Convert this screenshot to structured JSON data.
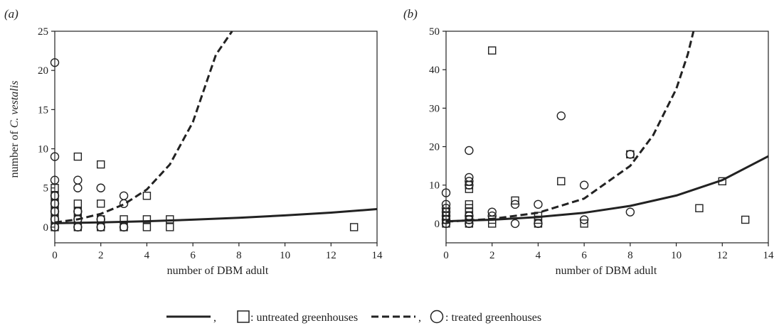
{
  "legend": {
    "untreated_label": ": untreated greenhouses",
    "treated_label": ": treated greenhouses",
    "separator": ","
  },
  "chart_data": [
    {
      "panel_label": "(a)",
      "type": "scatter",
      "xlabel": "number of DBM adult",
      "ylabel_prefix": "number of ",
      "ylabel_italic": "C. vestalis",
      "xlim": [
        0,
        14
      ],
      "ylim": [
        -2,
        25
      ],
      "xticks": [
        0,
        2,
        4,
        6,
        8,
        10,
        12,
        14
      ],
      "yticks": [
        0,
        5,
        10,
        15,
        20,
        25
      ],
      "grid": false,
      "series": [
        {
          "name": "untreated greenhouses",
          "marker": "square",
          "points": [
            [
              0,
              0
            ],
            [
              0,
              1
            ],
            [
              0,
              2
            ],
            [
              0,
              3
            ],
            [
              0,
              4
            ],
            [
              0,
              5
            ],
            [
              1,
              0
            ],
            [
              1,
              1
            ],
            [
              1,
              2
            ],
            [
              1,
              3
            ],
            [
              1,
              9
            ],
            [
              2,
              0
            ],
            [
              2,
              1
            ],
            [
              2,
              3
            ],
            [
              2,
              8
            ],
            [
              3,
              0
            ],
            [
              3,
              1
            ],
            [
              4,
              0
            ],
            [
              4,
              1
            ],
            [
              4,
              4
            ],
            [
              5,
              0
            ],
            [
              5,
              1
            ],
            [
              13,
              0
            ]
          ]
        },
        {
          "name": "treated greenhouses",
          "marker": "circle",
          "points": [
            [
              0,
              0
            ],
            [
              0,
              1
            ],
            [
              0,
              2
            ],
            [
              0,
              3
            ],
            [
              0,
              4
            ],
            [
              0,
              6
            ],
            [
              0,
              9
            ],
            [
              0,
              21
            ],
            [
              1,
              0
            ],
            [
              1,
              1
            ],
            [
              1,
              2
            ],
            [
              1,
              5
            ],
            [
              1,
              6
            ],
            [
              2,
              0
            ],
            [
              2,
              1
            ],
            [
              2,
              5
            ],
            [
              3,
              0
            ],
            [
              3,
              3
            ],
            [
              3,
              4
            ]
          ]
        }
      ],
      "fitted_curves": [
        {
          "series": "untreated greenhouses",
          "style": "solid",
          "x": [
            0,
            2,
            4,
            6,
            8,
            10,
            12,
            14
          ],
          "y": [
            0.5,
            0.6,
            0.75,
            0.95,
            1.2,
            1.5,
            1.85,
            2.3
          ]
        },
        {
          "series": "treated greenhouses",
          "style": "dashed",
          "x": [
            0,
            1,
            2,
            3,
            4,
            5,
            6,
            7,
            7.7
          ],
          "y": [
            0.6,
            1.0,
            1.7,
            2.9,
            4.8,
            8.0,
            13.4,
            22.0,
            25.0
          ]
        }
      ]
    },
    {
      "panel_label": "(b)",
      "type": "scatter",
      "xlabel": "number of DBM adult",
      "xlim": [
        0,
        14
      ],
      "ylim": [
        -5,
        50
      ],
      "xticks": [
        0,
        2,
        4,
        6,
        8,
        10,
        12,
        14
      ],
      "yticks": [
        0,
        10,
        20,
        30,
        40,
        50
      ],
      "grid": false,
      "series": [
        {
          "name": "untreated greenhouses",
          "marker": "square",
          "points": [
            [
              0,
              0
            ],
            [
              0,
              1
            ],
            [
              0,
              2
            ],
            [
              0,
              3
            ],
            [
              1,
              0
            ],
            [
              1,
              1
            ],
            [
              1,
              2
            ],
            [
              1,
              3
            ],
            [
              1,
              4
            ],
            [
              1,
              5
            ],
            [
              1,
              9
            ],
            [
              1,
              10
            ],
            [
              2,
              0
            ],
            [
              2,
              1
            ],
            [
              2,
              45
            ],
            [
              3,
              6
            ],
            [
              4,
              0
            ],
            [
              4,
              1
            ],
            [
              4,
              2
            ],
            [
              5,
              11
            ],
            [
              6,
              0
            ],
            [
              8,
              18
            ],
            [
              11,
              4
            ],
            [
              12,
              11
            ],
            [
              13,
              1
            ]
          ]
        },
        {
          "name": "treated greenhouses",
          "marker": "circle",
          "points": [
            [
              0,
              0
            ],
            [
              0,
              1
            ],
            [
              0,
              2
            ],
            [
              0,
              3
            ],
            [
              0,
              4
            ],
            [
              0,
              5
            ],
            [
              0,
              8
            ],
            [
              1,
              0
            ],
            [
              1,
              1
            ],
            [
              1,
              2
            ],
            [
              1,
              10
            ],
            [
              1,
              11
            ],
            [
              1,
              12
            ],
            [
              1,
              19
            ],
            [
              2,
              2
            ],
            [
              2,
              3
            ],
            [
              3,
              0
            ],
            [
              3,
              5
            ],
            [
              4,
              0
            ],
            [
              4,
              5
            ],
            [
              5,
              28
            ],
            [
              6,
              1
            ],
            [
              6,
              10
            ],
            [
              8,
              3
            ],
            [
              8,
              18
            ]
          ]
        }
      ],
      "fitted_curves": [
        {
          "series": "untreated greenhouses",
          "style": "solid",
          "x": [
            0,
            2,
            4,
            6,
            8,
            10,
            12,
            14
          ],
          "y": [
            0.6,
            1.0,
            1.7,
            2.8,
            4.6,
            7.3,
            11.3,
            17.5
          ]
        },
        {
          "series": "treated greenhouses",
          "style": "dashed",
          "x": [
            0,
            2,
            4,
            6,
            8,
            9,
            10,
            10.5,
            10.75
          ],
          "y": [
            0.5,
            1.2,
            2.8,
            6.5,
            15.0,
            23.0,
            35.0,
            44.0,
            50.0
          ]
        }
      ]
    }
  ]
}
